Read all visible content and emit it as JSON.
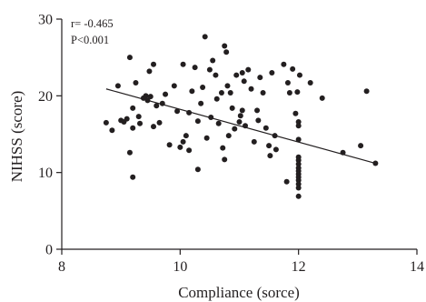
{
  "chart_data": {
    "type": "scatter",
    "xlabel": "Compliance (sorce)",
    "ylabel": "NIHSS (score)",
    "xlim": [
      8,
      14
    ],
    "ylim": [
      0,
      30
    ],
    "xticks": [
      "8",
      "10",
      "12",
      "14"
    ],
    "yticks": [
      "0",
      "10",
      "20",
      "30"
    ],
    "annotations": [
      "r= -0.465",
      "P<0.001"
    ],
    "grid": false,
    "legend": "none",
    "colors": {
      "points": "#231f20",
      "line": "#231f20",
      "axis": "#231f20"
    },
    "regression_line": {
      "x": [
        8.75,
        13.3
      ],
      "y": [
        20.9,
        11.2
      ]
    },
    "points": [
      [
        8.75,
        16.5
      ],
      [
        8.85,
        15.5
      ],
      [
        8.95,
        21.3
      ],
      [
        9.0,
        16.8
      ],
      [
        9.05,
        16.6
      ],
      [
        9.1,
        17.0
      ],
      [
        9.15,
        12.6
      ],
      [
        9.15,
        25.0
      ],
      [
        9.2,
        9.4
      ],
      [
        9.2,
        18.4
      ],
      [
        9.2,
        15.8
      ],
      [
        9.25,
        21.7
      ],
      [
        9.3,
        17.3
      ],
      [
        9.32,
        16.4
      ],
      [
        9.38,
        19.7
      ],
      [
        9.42,
        20.0
      ],
      [
        9.45,
        19.4
      ],
      [
        9.48,
        23.2
      ],
      [
        9.5,
        19.9
      ],
      [
        9.55,
        24.1
      ],
      [
        9.55,
        16.0
      ],
      [
        9.6,
        18.7
      ],
      [
        9.65,
        16.5
      ],
      [
        9.7,
        19.0
      ],
      [
        9.75,
        20.2
      ],
      [
        9.82,
        13.6
      ],
      [
        9.9,
        21.3
      ],
      [
        9.95,
        18.0
      ],
      [
        10.0,
        13.3
      ],
      [
        10.05,
        14.0
      ],
      [
        10.05,
        24.1
      ],
      [
        10.1,
        14.8
      ],
      [
        10.15,
        12.9
      ],
      [
        10.15,
        17.8
      ],
      [
        10.2,
        20.6
      ],
      [
        10.25,
        23.7
      ],
      [
        10.3,
        10.4
      ],
      [
        10.3,
        16.7
      ],
      [
        10.35,
        19.0
      ],
      [
        10.38,
        21.1
      ],
      [
        10.42,
        27.7
      ],
      [
        10.45,
        14.5
      ],
      [
        10.5,
        23.4
      ],
      [
        10.52,
        17.2
      ],
      [
        10.55,
        24.6
      ],
      [
        10.6,
        22.7
      ],
      [
        10.62,
        19.6
      ],
      [
        10.65,
        16.4
      ],
      [
        10.7,
        20.4
      ],
      [
        10.72,
        13.2
      ],
      [
        10.75,
        11.7
      ],
      [
        10.75,
        26.5
      ],
      [
        10.78,
        25.7
      ],
      [
        10.8,
        21.3
      ],
      [
        10.82,
        14.8
      ],
      [
        10.85,
        20.4
      ],
      [
        10.88,
        18.4
      ],
      [
        10.92,
        15.7
      ],
      [
        10.95,
        22.7
      ],
      [
        11.0,
        16.6
      ],
      [
        11.02,
        17.4
      ],
      [
        11.05,
        18.1
      ],
      [
        11.05,
        23.0
      ],
      [
        11.08,
        21.9
      ],
      [
        11.1,
        16.1
      ],
      [
        11.15,
        23.4
      ],
      [
        11.2,
        20.9
      ],
      [
        11.25,
        14.0
      ],
      [
        11.3,
        18.1
      ],
      [
        11.32,
        16.8
      ],
      [
        11.35,
        22.4
      ],
      [
        11.4,
        20.4
      ],
      [
        11.45,
        15.8
      ],
      [
        11.5,
        13.5
      ],
      [
        11.52,
        12.2
      ],
      [
        11.55,
        23.0
      ],
      [
        11.6,
        14.8
      ],
      [
        11.62,
        13.0
      ],
      [
        11.75,
        24.1
      ],
      [
        11.8,
        8.8
      ],
      [
        11.82,
        21.7
      ],
      [
        11.85,
        20.4
      ],
      [
        11.9,
        23.5
      ],
      [
        11.95,
        17.7
      ],
      [
        11.98,
        20.5
      ],
      [
        12.0,
        14.3
      ],
      [
        12.0,
        16.6
      ],
      [
        12.0,
        16.1
      ],
      [
        12.02,
        22.7
      ],
      [
        12.0,
        12.0
      ],
      [
        12.0,
        11.6
      ],
      [
        12.0,
        11.1
      ],
      [
        12.0,
        10.6
      ],
      [
        12.0,
        10.2
      ],
      [
        12.0,
        9.8
      ],
      [
        12.0,
        9.4
      ],
      [
        12.0,
        9.0
      ],
      [
        12.0,
        8.5
      ],
      [
        12.0,
        8.0
      ],
      [
        12.0,
        6.9
      ],
      [
        12.2,
        21.7
      ],
      [
        12.4,
        19.7
      ],
      [
        12.75,
        12.6
      ],
      [
        13.05,
        13.5
      ],
      [
        13.15,
        20.6
      ],
      [
        13.3,
        11.2
      ]
    ]
  }
}
